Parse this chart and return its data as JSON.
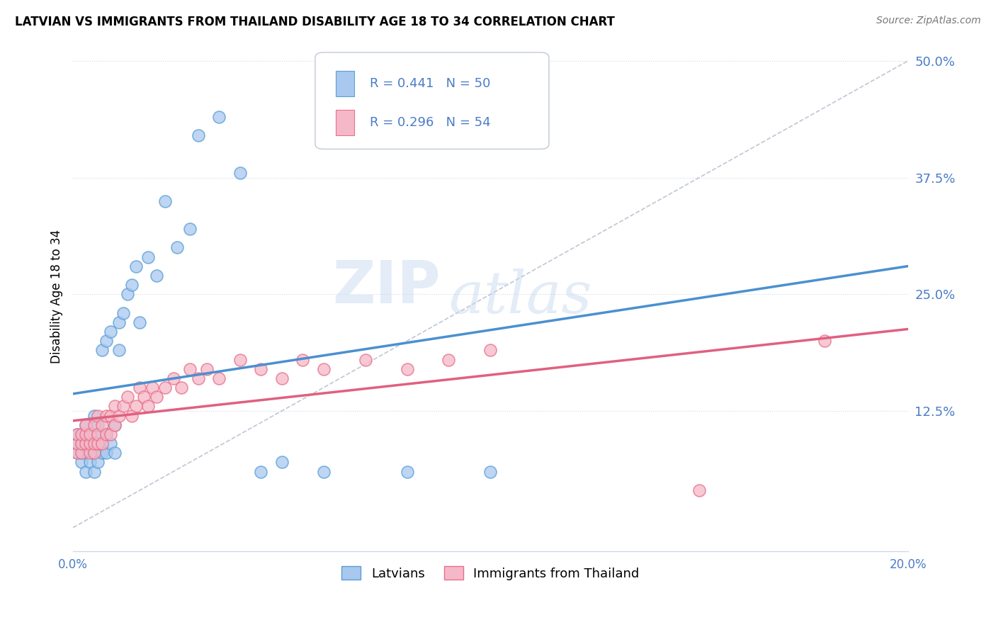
{
  "title": "LATVIAN VS IMMIGRANTS FROM THAILAND DISABILITY AGE 18 TO 34 CORRELATION CHART",
  "source": "Source: ZipAtlas.com",
  "ylabel": "Disability Age 18 to 34",
  "yticks": [
    0.0,
    0.125,
    0.25,
    0.375,
    0.5
  ],
  "ytick_labels": [
    "",
    "12.5%",
    "25.0%",
    "37.5%",
    "50.0%"
  ],
  "xlim": [
    0.0,
    0.2
  ],
  "ylim": [
    -0.025,
    0.52
  ],
  "legend_r1": "R = 0.441",
  "legend_n1": "N = 50",
  "legend_r2": "R = 0.296",
  "legend_n2": "N = 54",
  "legend_label1": "Latvians",
  "legend_label2": "Immigrants from Thailand",
  "color_blue": "#a8c8f0",
  "color_pink": "#f5b8c8",
  "color_blue_edge": "#5a9fd4",
  "color_pink_edge": "#e8708a",
  "color_blue_line": "#4a90d0",
  "color_pink_line": "#e06080",
  "color_axis_text": "#4a7cc7",
  "background_color": "#ffffff",
  "grid_color": "#d0d8e8",
  "watermark_zip": "ZIP",
  "watermark_atlas": "atlas",
  "latvian_x": [
    0.001,
    0.001,
    0.001,
    0.002,
    0.002,
    0.002,
    0.002,
    0.003,
    0.003,
    0.003,
    0.003,
    0.004,
    0.004,
    0.004,
    0.005,
    0.005,
    0.005,
    0.005,
    0.006,
    0.006,
    0.006,
    0.007,
    0.007,
    0.008,
    0.008,
    0.008,
    0.009,
    0.009,
    0.01,
    0.01,
    0.011,
    0.011,
    0.012,
    0.013,
    0.014,
    0.015,
    0.016,
    0.018,
    0.02,
    0.022,
    0.025,
    0.028,
    0.03,
    0.035,
    0.04,
    0.045,
    0.05,
    0.06,
    0.08,
    0.1
  ],
  "latvian_y": [
    0.08,
    0.09,
    0.1,
    0.07,
    0.08,
    0.09,
    0.1,
    0.06,
    0.08,
    0.09,
    0.11,
    0.07,
    0.09,
    0.1,
    0.06,
    0.08,
    0.1,
    0.12,
    0.07,
    0.09,
    0.11,
    0.08,
    0.19,
    0.08,
    0.1,
    0.2,
    0.09,
    0.21,
    0.08,
    0.11,
    0.19,
    0.22,
    0.23,
    0.25,
    0.26,
    0.28,
    0.22,
    0.29,
    0.27,
    0.35,
    0.3,
    0.32,
    0.42,
    0.44,
    0.38,
    0.06,
    0.07,
    0.06,
    0.06,
    0.06
  ],
  "thailand_x": [
    0.001,
    0.001,
    0.001,
    0.002,
    0.002,
    0.002,
    0.003,
    0.003,
    0.003,
    0.004,
    0.004,
    0.004,
    0.005,
    0.005,
    0.005,
    0.006,
    0.006,
    0.006,
    0.007,
    0.007,
    0.008,
    0.008,
    0.009,
    0.009,
    0.01,
    0.01,
    0.011,
    0.012,
    0.013,
    0.014,
    0.015,
    0.016,
    0.017,
    0.018,
    0.019,
    0.02,
    0.022,
    0.024,
    0.026,
    0.028,
    0.03,
    0.032,
    0.035,
    0.04,
    0.045,
    0.05,
    0.055,
    0.06,
    0.07,
    0.08,
    0.09,
    0.1,
    0.15,
    0.18
  ],
  "thailand_y": [
    0.08,
    0.09,
    0.1,
    0.08,
    0.09,
    0.1,
    0.09,
    0.1,
    0.11,
    0.08,
    0.09,
    0.1,
    0.08,
    0.09,
    0.11,
    0.09,
    0.1,
    0.12,
    0.09,
    0.11,
    0.1,
    0.12,
    0.1,
    0.12,
    0.11,
    0.13,
    0.12,
    0.13,
    0.14,
    0.12,
    0.13,
    0.15,
    0.14,
    0.13,
    0.15,
    0.14,
    0.15,
    0.16,
    0.15,
    0.17,
    0.16,
    0.17,
    0.16,
    0.18,
    0.17,
    0.16,
    0.18,
    0.17,
    0.18,
    0.17,
    0.18,
    0.19,
    0.04,
    0.2
  ]
}
